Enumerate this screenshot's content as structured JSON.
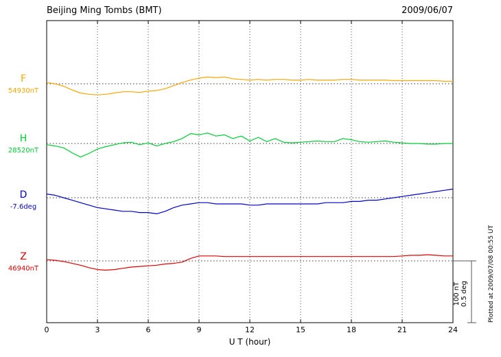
{
  "header": {
    "title": "Beijing Ming Tombs (BMT)",
    "date": "2009/06/07"
  },
  "axis": {
    "xlabel": "U T (hour)",
    "ticks": [
      "0",
      "3",
      "6",
      "9",
      "12",
      "15",
      "18",
      "21",
      "24"
    ]
  },
  "scale_bar": {
    "line1": "100 nT",
    "line2": "0.5 deg"
  },
  "footer_note": "Plotted at 2009/07/08 00:55 UT",
  "chart_data": {
    "type": "line",
    "title": "Beijing Ming Tombs (BMT) magnetogram, 2009/06/07",
    "xlabel": "U T (hour)",
    "x_range": [
      0,
      24
    ],
    "x_ticks": [
      0,
      3,
      6,
      9,
      12,
      15,
      18,
      21,
      24
    ],
    "x_start": 0,
    "x_step": 0.5,
    "grid": "dotted vertical gridlines every 3 hours; dotted horizontal baseline per trace",
    "scale": {
      "nT_per_division": 100,
      "deg_per_division": 0.5
    },
    "series": [
      {
        "name": "F",
        "units": "nT",
        "color": "#FFA500",
        "baseline": 54930,
        "baseline_label": "54930nT",
        "values": [
          54932,
          54930,
          54926,
          54920,
          54915,
          54913,
          54912,
          54913,
          54915,
          54917,
          54917,
          54916,
          54918,
          54919,
          54922,
          54927,
          54932,
          54936,
          54939,
          54941,
          54940,
          54941,
          54938,
          54937,
          54936,
          54937,
          54936,
          54937,
          54937,
          54936,
          54936,
          54937,
          54936,
          54936,
          54936,
          54937,
          54937,
          54936,
          54936,
          54936,
          54936,
          54935,
          54935,
          54935,
          54935,
          54935,
          54935,
          54934,
          54934
        ]
      },
      {
        "name": "H",
        "units": "nT",
        "color": "#00CC33",
        "baseline": 28520,
        "baseline_label": "28520nT",
        "values": [
          28518,
          28516,
          28513,
          28505,
          28498,
          28504,
          28511,
          28515,
          28518,
          28521,
          28522,
          28518,
          28521,
          28516,
          28520,
          28523,
          28528,
          28536,
          28534,
          28537,
          28532,
          28534,
          28528,
          28532,
          28524,
          28530,
          28523,
          28528,
          28522,
          28521,
          28522,
          28523,
          28524,
          28523,
          28523,
          28528,
          28526,
          28523,
          28522,
          28523,
          28524,
          28522,
          28521,
          28520,
          28520,
          28519,
          28519,
          28520,
          28520
        ]
      },
      {
        "name": "D",
        "units": "deg",
        "color": "#0000CC",
        "baseline": -7.6,
        "baseline_label": "-7.6deg",
        "values": [
          -7.57,
          -7.58,
          -7.6,
          -7.62,
          -7.64,
          -7.66,
          -7.68,
          -7.69,
          -7.7,
          -7.71,
          -7.71,
          -7.72,
          -7.72,
          -7.73,
          -7.71,
          -7.68,
          -7.66,
          -7.65,
          -7.64,
          -7.64,
          -7.65,
          -7.65,
          -7.65,
          -7.65,
          -7.66,
          -7.66,
          -7.65,
          -7.65,
          -7.65,
          -7.65,
          -7.65,
          -7.65,
          -7.65,
          -7.64,
          -7.64,
          -7.64,
          -7.63,
          -7.63,
          -7.62,
          -7.62,
          -7.61,
          -7.6,
          -7.59,
          -7.58,
          -7.57,
          -7.56,
          -7.55,
          -7.54,
          -7.53
        ]
      },
      {
        "name": "Z",
        "units": "nT",
        "color": "#DD0000",
        "baseline": 46940,
        "baseline_label": "46940nT",
        "values": [
          46942,
          46941,
          46939,
          46936,
          46933,
          46929,
          46926,
          46925,
          46926,
          46928,
          46930,
          46931,
          46932,
          46933,
          46935,
          46936,
          46938,
          46944,
          46948,
          46948,
          46948,
          46947,
          46947,
          46947,
          46947,
          46947,
          46947,
          46947,
          46947,
          46947,
          46947,
          46947,
          46947,
          46947,
          46947,
          46947,
          46947,
          46947,
          46947,
          46947,
          46947,
          46947,
          46948,
          46949,
          46949,
          46950,
          46949,
          46948,
          46948
        ]
      }
    ]
  }
}
